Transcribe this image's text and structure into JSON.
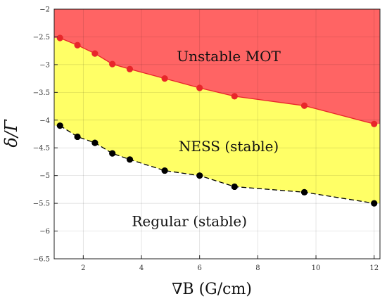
{
  "chart_data": {
    "type": "area",
    "xlabel": "∇B (G/cm)",
    "ylabel": "δ/Γ",
    "xlim": [
      1.0,
      12.2
    ],
    "ylim": [
      -6.5,
      -2.0
    ],
    "x_ticks": [
      2,
      4,
      6,
      8,
      10,
      12
    ],
    "x_tick_labels": [
      "2",
      "4",
      "6",
      "8",
      "10",
      "12"
    ],
    "y_ticks": [
      -6.5,
      -6,
      -5.5,
      -5,
      -4.5,
      -4,
      -3.5,
      -3,
      -2.5,
      -2
    ],
    "y_tick_labels": [
      "−6.5",
      "−6",
      "−5.5",
      "−5",
      "−4.5",
      "−4",
      "−3.5",
      "−3",
      "−2.5",
      "−2"
    ],
    "grid": true,
    "series": [
      {
        "role": "upper-boundary",
        "color": "#e8262a",
        "line_style": "solid",
        "x": [
          1.2,
          1.8,
          2.4,
          3.0,
          3.6,
          4.8,
          6.0,
          7.2,
          9.6,
          12.0
        ],
        "y": [
          -2.52,
          -2.65,
          -2.8,
          -2.99,
          -3.08,
          -3.25,
          -3.42,
          -3.57,
          -3.74,
          -4.07
        ]
      },
      {
        "role": "lower-boundary",
        "color": "#000000",
        "line_style": "dashed",
        "x": [
          1.2,
          1.8,
          2.4,
          3.0,
          3.6,
          4.8,
          6.0,
          7.2,
          9.6,
          12.0
        ],
        "y": [
          -4.1,
          -4.3,
          -4.41,
          -4.6,
          -4.71,
          -4.91,
          -5.0,
          -5.2,
          -5.3,
          -5.5
        ]
      }
    ],
    "regions": [
      {
        "label": "Unstable MOT",
        "color": "#ff6464",
        "x": 7.0,
        "y": -2.85
      },
      {
        "label": "NESS (stable)",
        "color": "#ffff66",
        "x": 7.0,
        "y": -4.47
      },
      {
        "label": "Regular (stable)",
        "color": "#ffffff",
        "x": 5.65,
        "y": -5.82
      }
    ]
  }
}
